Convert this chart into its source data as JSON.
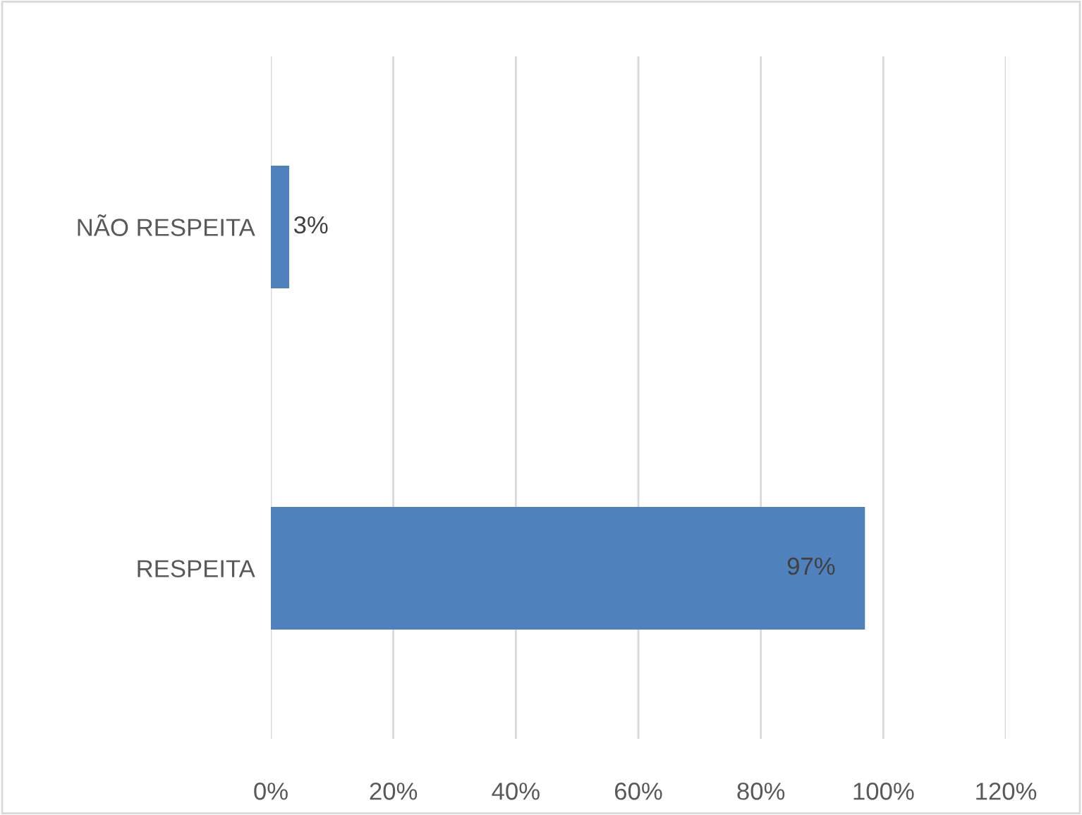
{
  "chart_data": {
    "type": "bar",
    "orientation": "horizontal",
    "categories": [
      "NÃO RESPEITA",
      "RESPEITA"
    ],
    "values": [
      3,
      97
    ],
    "value_labels": [
      "3%",
      "97%"
    ],
    "color": "#4f81bd",
    "xlim": [
      0,
      120
    ],
    "xticks": [
      {
        "value": 0,
        "label": "0%"
      },
      {
        "value": 20,
        "label": "20%"
      },
      {
        "value": 40,
        "label": "40%"
      },
      {
        "value": 60,
        "label": "60%"
      },
      {
        "value": 80,
        "label": "80%"
      },
      {
        "value": 100,
        "label": "100%"
      },
      {
        "value": 120,
        "label": "120%"
      }
    ],
    "grid": "x",
    "legend": false
  }
}
